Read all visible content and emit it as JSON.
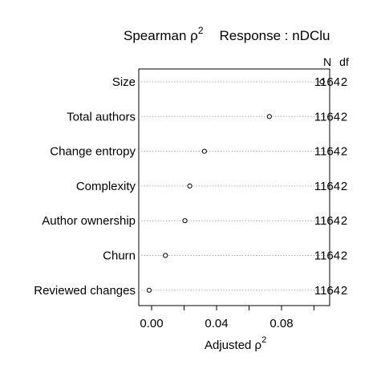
{
  "chart_data": {
    "type": "scatter",
    "title": {
      "prefix": "Spearman ",
      "rho": "ρ",
      "rho_sup": "2",
      "response": "Response : nDClu"
    },
    "xlabel": {
      "text": "Adjusted ",
      "rho": "ρ",
      "rho_sup": "2"
    },
    "column_headers": [
      "N",
      "df"
    ],
    "categories": [
      "Size",
      "Total authors",
      "Change entropy",
      "Complexity",
      "Author ownership",
      "Churn",
      "Reviewed changes"
    ],
    "values": [
      0.105,
      0.0725,
      0.0325,
      0.0235,
      0.0205,
      0.0085,
      -0.0015
    ],
    "N": [
      "1164",
      "1164",
      "1164",
      "1164",
      "1164",
      "1164",
      "1164"
    ],
    "df": [
      "2",
      "2",
      "2",
      "2",
      "2",
      "2",
      "2"
    ],
    "x_ticks": [
      0.0,
      0.02,
      0.04,
      0.06,
      0.08,
      0.1
    ],
    "x_tick_labels": [
      "0.00",
      "",
      "0.04",
      "",
      "0.08",
      ""
    ],
    "xlim": [
      -0.0055,
      0.1085
    ],
    "grid": "dotted-horizontal",
    "marker": "open-circle"
  }
}
